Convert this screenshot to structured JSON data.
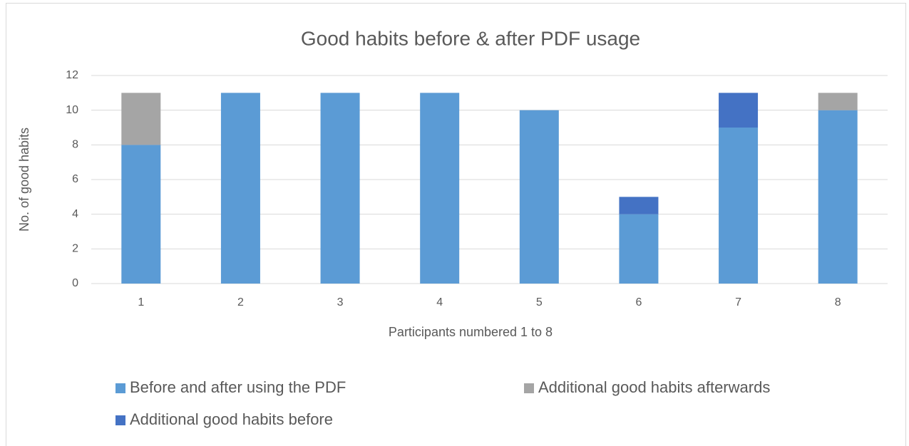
{
  "chart_data": {
    "type": "stacked_bar",
    "title": "Good habits before & after PDF usage",
    "x_label": "Participants numbered 1 to 8",
    "y_label": "No. of good habits",
    "categories": [
      "1",
      "2",
      "3",
      "4",
      "5",
      "6",
      "7",
      "8"
    ],
    "series": [
      {
        "name": "Before and after using the PDF",
        "color": "#5b9bd5",
        "values": [
          8,
          11,
          11,
          11,
          10,
          4,
          9,
          10
        ]
      },
      {
        "name": "Additional good habits afterwards",
        "color": "#a5a5a5",
        "values": [
          3,
          0,
          0,
          0,
          0,
          0,
          0,
          1
        ]
      },
      {
        "name": "Additional good habits before",
        "color": "#4472c4",
        "values": [
          0,
          0,
          0,
          0,
          0,
          1,
          2,
          0
        ]
      }
    ],
    "ylim": [
      0,
      12
    ],
    "yticks": [
      0,
      2,
      4,
      6,
      8,
      10,
      12
    ],
    "grid": true,
    "legend": "bottom"
  }
}
